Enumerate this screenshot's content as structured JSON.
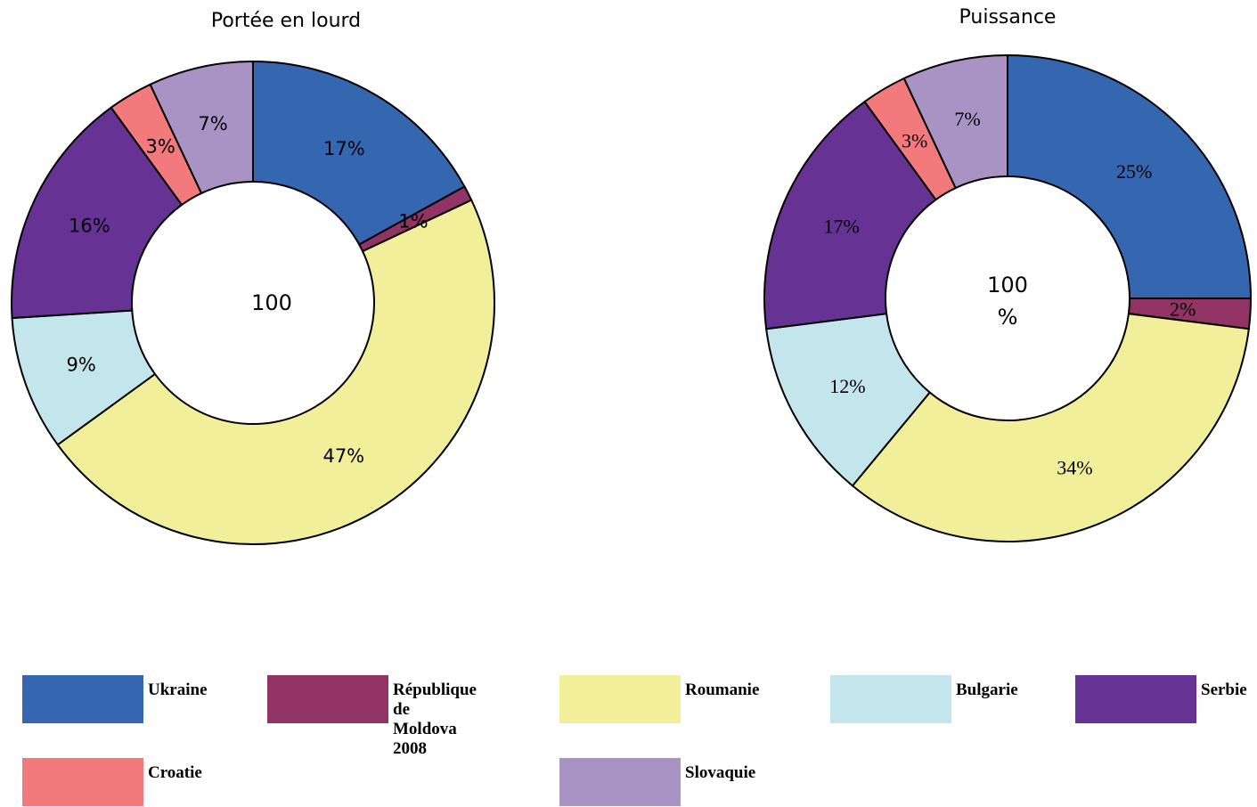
{
  "chart_data": [
    {
      "type": "pie",
      "title": "Portée en lourd",
      "center_label": "100",
      "categories": [
        "Ukraine",
        "République de Moldova 2008",
        "Roumanie",
        "Bulgarie",
        "Serbie",
        "Croatie",
        "Slovaquie"
      ],
      "values": [
        17,
        1,
        47,
        9,
        16,
        3,
        7
      ],
      "value_labels": [
        "17%",
        "1%",
        "47%",
        "9%",
        "16%",
        "3%",
        "7%"
      ],
      "colors": [
        "#3567B0",
        "#913365",
        "#F2EF9B",
        "#C3E5EC",
        "#663395",
        "#F37A7C",
        "#A993C4"
      ]
    },
    {
      "type": "pie",
      "title": "Puissance",
      "center_label": "100\n%",
      "categories": [
        "Ukraine",
        "République de Moldova 2008",
        "Roumanie",
        "Bulgarie",
        "Serbie",
        "Croatie",
        "Slovaquie"
      ],
      "values": [
        25,
        2,
        34,
        12,
        17,
        3,
        7
      ],
      "value_labels": [
        "25%",
        "2%",
        "34%",
        "12%",
        "17%",
        "3%",
        "7%"
      ],
      "colors": [
        "#3567B0",
        "#913365",
        "#F2EF9B",
        "#C3E5EC",
        "#663395",
        "#F37A7C",
        "#A993C4"
      ]
    }
  ],
  "legend": [
    {
      "label": "Ukraine",
      "color": "#3567B0"
    },
    {
      "label": "République de\nMoldova\n2008",
      "color": "#913365"
    },
    {
      "label": "Roumanie",
      "color": "#F2EF9B"
    },
    {
      "label": "Bulgarie",
      "color": "#C3E5EC"
    },
    {
      "label": "Serbie",
      "color": "#663395"
    },
    {
      "label": "Croatie",
      "color": "#F37A7C"
    },
    {
      "label": "Slovaquie",
      "color": "#A993C4"
    }
  ]
}
